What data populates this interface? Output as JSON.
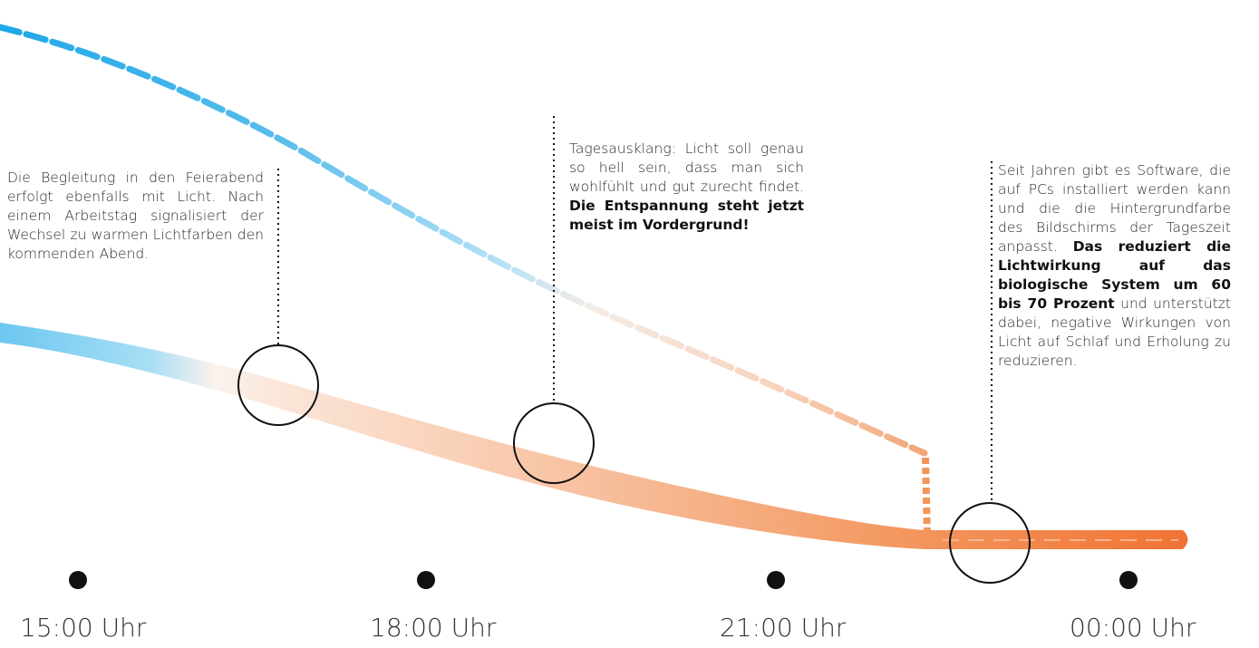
{
  "annotations": [
    {
      "id": "feierabend",
      "text_plain": "Die Begleitung in den Feierabend erfolgt ebenfalls mit Licht. Nach einem Arbeitstag signalisiert der Wechsel zu warmen Lichtfarben den kommenden Abend.",
      "text_bold": ""
    },
    {
      "id": "tagesausklang",
      "text_plain": "Tagesausklang: Licht soll genau so hell sein, dass man sich wohlfühlt und gut zurecht findet. ",
      "text_bold": "Die Entspannung steht jetzt meist im Vordergrund!"
    },
    {
      "id": "software",
      "text_plain": "Seit Jahren gibt es Software, die auf PCs installiert werden kann und die die Hintergrundfarbe des Bildschirms der Tageszeit anpasst. ",
      "text_bold": "Das reduziert die Lichtwirkung auf das biologische System um 60 bis 70 Prozent",
      "text_after": " und unterstützt dabei, negative Wirkungen von Licht auf Schlaf und Erholung zu reduzieren."
    }
  ],
  "timeline": {
    "labels": [
      "15:00 Uhr",
      "18:00 Uhr",
      "21:00 Uhr",
      "00:00 Uhr"
    ]
  },
  "colors": {
    "cool": "#2bb0ea",
    "warm": "#f06a28",
    "marker": "#111111"
  }
}
